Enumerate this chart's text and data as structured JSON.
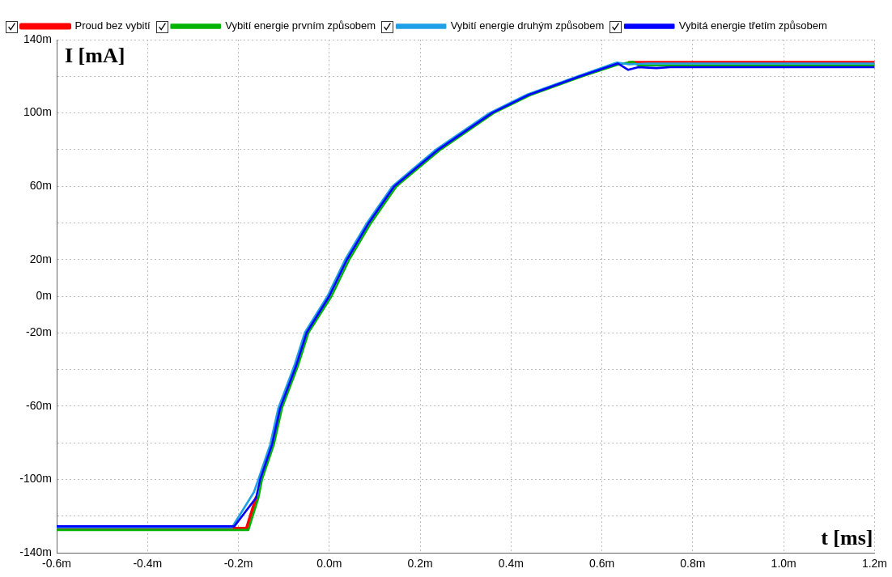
{
  "chart_data": {
    "type": "line",
    "xlabel": "t [ms]",
    "ylabel": "I [mA]",
    "xlim": [
      -0.6,
      1.2
    ],
    "ylim": [
      -140,
      140
    ],
    "xticks": [
      {
        "value": -0.6,
        "label": "-0.6m"
      },
      {
        "value": -0.4,
        "label": "-0.4m"
      },
      {
        "value": -0.2,
        "label": "-0.2m"
      },
      {
        "value": 0,
        "label": "0.0m"
      },
      {
        "value": 0.2,
        "label": "0.2m"
      },
      {
        "value": 0.4,
        "label": "0.4m"
      },
      {
        "value": 0.6,
        "label": "0.6m"
      },
      {
        "value": 0.8,
        "label": "0.8m"
      },
      {
        "value": 1.0,
        "label": "1.0m"
      },
      {
        "value": 1.2,
        "label": "1.2m"
      }
    ],
    "yticks": [
      {
        "value": -140,
        "label": "-140m"
      },
      {
        "value": -120,
        "label": null
      },
      {
        "value": -100,
        "label": "-100m"
      },
      {
        "value": -80,
        "label": null
      },
      {
        "value": -60,
        "label": "-60m"
      },
      {
        "value": -40,
        "label": null
      },
      {
        "value": -20,
        "label": "-20m"
      },
      {
        "value": 0,
        "label": "0m"
      },
      {
        "value": 20,
        "label": "20m"
      },
      {
        "value": 40,
        "label": null
      },
      {
        "value": 60,
        "label": "60m"
      },
      {
        "value": 80,
        "label": null
      },
      {
        "value": 100,
        "label": "100m"
      },
      {
        "value": 120,
        "label": null
      },
      {
        "value": 140,
        "label": "140m"
      }
    ],
    "grid": true,
    "legend": "top",
    "marker": "none",
    "line_style": "solid",
    "series": [
      {
        "name": "Proud bez vybití",
        "color": "#ff0000",
        "x": [
          -0.6,
          -0.182,
          -0.161,
          -0.1,
          0.66,
          0.72,
          0.75,
          1.2
        ],
        "values": [
          -126.8,
          -126.8,
          -110,
          null,
          127.5,
          127.5,
          127.5,
          127.5
        ]
      },
      {
        "name": "Vybití energie prvním způsobem",
        "color": "#00b400",
        "x": [
          -0.6,
          -0.178,
          -0.156,
          -0.148,
          -0.122,
          -0.104,
          -0.069,
          -0.046,
          0.005,
          0.044,
          0.092,
          0.148,
          0.245,
          0.362,
          0.445,
          0.557,
          0.637,
          0.667,
          0.68,
          1.2
        ],
        "values": [
          -127.6,
          -127.6,
          -110,
          -100,
          -81,
          -61,
          -38,
          -20,
          0,
          20,
          40,
          60,
          80,
          100,
          110,
          120,
          126.5,
          128,
          126,
          126
        ]
      },
      {
        "name": "Vybití energie druhým způsobem",
        "color": "#1ea0e6",
        "x": [
          -0.6,
          -0.214,
          -0.166,
          -0.156,
          -0.13,
          -0.112,
          -0.077,
          -0.054,
          -0.004,
          0.035,
          0.083,
          0.139,
          0.235,
          0.353,
          0.435,
          0.547,
          0.633,
          0.66,
          0.7,
          1.2
        ],
        "values": [
          -126.2,
          -126.2,
          -107,
          -100,
          -81,
          -61,
          -38,
          -20,
          0,
          20,
          40,
          60,
          80,
          100,
          110,
          120,
          127.5,
          126.5,
          127,
          127
        ]
      },
      {
        "name": "Vybitá energie třetím způsobem",
        "color": "#0000ff",
        "x": [
          -0.6,
          -0.209,
          -0.161,
          -0.152,
          -0.126,
          -0.108,
          -0.073,
          -0.05,
          0,
          0.039,
          0.087,
          0.143,
          0.24,
          0.358,
          0.44,
          0.552,
          0.635,
          0.658,
          0.68,
          0.72,
          0.75,
          1.2
        ],
        "values": [
          -125.6,
          -125.6,
          -110,
          -100,
          -81,
          -61,
          -38,
          -20,
          0,
          20,
          40,
          60,
          80,
          100,
          110,
          120,
          127,
          123.5,
          125,
          124.5,
          125,
          125
        ]
      }
    ]
  }
}
